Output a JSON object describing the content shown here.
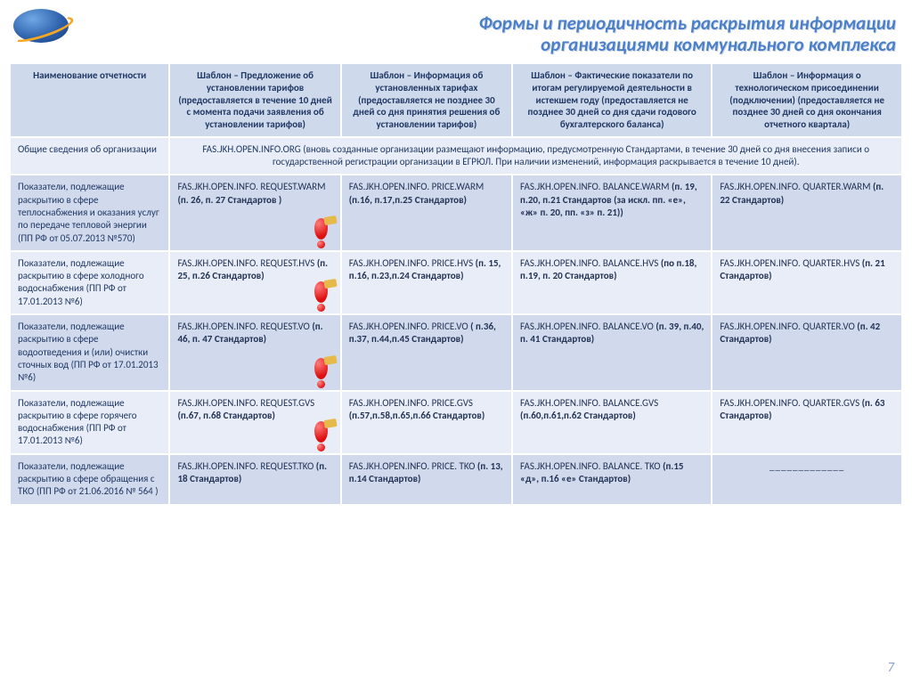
{
  "title_line1": "Формы и периодичность раскрытия информации",
  "title_line2": "организациями коммунального комплекса",
  "page_number": "7",
  "headers": {
    "c0": "Наименование отчетности",
    "c1": "Шаблон – Предложение об установлении тарифов (предоставляется в течение 10 дней с момента подачи заявления об установлении тарифов)",
    "c2": "Шаблон – Информация об установленных тарифах (предоставляется не позднее 30 дней со дня принятия решения об установлении тарифов)",
    "c3": "Шаблон – Фактические показатели по итогам регулируемой деятельности в истекшем году (предоставляется не позднее 30 дней со дня сдачи годового бухгалтерского баланса)",
    "c4": "Шаблон – Информация о технологическом присоединении (подключении) (предоставляется не позднее 30 дней со дня окончания отчетного квартала)"
  },
  "row0": {
    "label": "Общие сведения об организации",
    "merged": "FAS.JKH.OPEN.INFO.ORG   (вновь созданные организации размещают информацию, предусмотренную  Стандартами, в течение 30 дней со дня внесения записи о государственной регистрации организации в ЕГРЮЛ. При наличии изменений, информация раскрывается в течение 10 дней)."
  },
  "row1": {
    "label": "Показатели, подлежащие раскрытию в сфере теплоснабжения и оказания услуг по передаче тепловой энергии (ПП РФ от 05.07.2013 №570)",
    "c1a": "FAS.JKH.OPEN.INFO. REQUEST.WARM ",
    "c1b": "(п. 26, п. 27 Стандартов )",
    "c2a": "FAS.JKH.OPEN.INFO. PRICE.WARM ",
    "c2b": "(п.16, п.17,п.25 Стандартов)",
    "c3a": "FAS.JKH.OPEN.INFO. BALANCE.WARM ",
    "c3b": "(п. 19, п.20, п.21 Стандартов (за искл. пп. «е», «ж» п. 20, пп. «з» п. 21))",
    "c4a": "FAS.JKH.OPEN.INFO. QUARTER.WARM ",
    "c4b": "(п. 22 Стандартов)"
  },
  "row2": {
    "label": "Показатели, подлежащие раскрытию в сфере холодного водоснабжения (ПП РФ от 17.01.2013 №6)",
    "c1a": "FAS.JKH.OPEN.INFO. REQUEST.HVS  ",
    "c1b": "(п. 25, п.26 Стандартов)",
    "c2a": "FAS.JKH.OPEN.INFO. PRICE.HVS  ",
    "c2b": "(п. 15, п.16, п.23,п.24 Стандартов)",
    "c3a": "FAS.JKH.OPEN.INFO. BALANCE.HVS ",
    "c3b": "(по п.18, п.19, п. 20 Стандартов)",
    "c4a": "FAS.JKH.OPEN.INFO. QUARTER.HVS ",
    "c4b": "(п. 21 Стандартов)"
  },
  "row3": {
    "label": "Показатели, подлежащие раскрытию в сфере водоотведения и (или) очистки сточных вод (ПП РФ от 17.01.2013 №6)",
    "c1a": "FAS.JKH.OPEN.INFO. REQUEST.VO ",
    "c1b": "(п. 46, п. 47 Стандартов)",
    "c2a": "FAS.JKH.OPEN.INFO. PRICE.VO ",
    "c2b": "( п.36, п.37, п.44,п.45 Стандартов)",
    "c3a": "FAS.JKH.OPEN.INFO. BALANCE.VO ",
    "c3b": "(п. 39, п.40, п. 41 Стандартов)",
    "c4a": "FAS.JKH.OPEN.INFO. QUARTER.VO ",
    "c4b": "(п. 42 Стандартов)"
  },
  "row4": {
    "label": "Показатели, подлежащие раскрытию в сфере горячего водоснабжения (ПП РФ от 17.01.2013 №6)",
    "c1a": "FAS.JKH.OPEN.INFO. REQUEST.GVS ",
    "c1b": "(п.67, п.68 Стандартов)",
    "c2a": "FAS.JKH.OPEN.INFO. PRICE.GVS ",
    "c2b": "(п.57,п.58,п.65,п.66 Стандартов)",
    "c3a": "FAS.JKH.OPEN.INFO. BALANCE.GVS ",
    "c3b": "(п.60,п.61,п.62 Стандартов)",
    "c4a": "FAS.JKH.OPEN.INFO. QUARTER.GVS ",
    "c4b": "(п. 63 Стандартов)"
  },
  "row5": {
    "label": "Показатели, подлежащие раскрытию в сфере обращения с ТКО (ПП РФ от 21.06.2016 № 564 )",
    "c1a": "FAS.JKH.OPEN.INFO. REQUEST.TKO ",
    "c1b": "(п. 18 Стандартов)",
    "c2a": "FAS.JKH.OPEN.INFO. PRICE. TKO ",
    "c2b": "(п. 13, п.14 Стандартов)",
    "c3a": "FAS.JKH.OPEN.INFO. BALANCE. TKO ",
    "c3b": "(п.15 «д», п.16 «е» Стандартов)",
    "c4dash": "_____________"
  }
}
